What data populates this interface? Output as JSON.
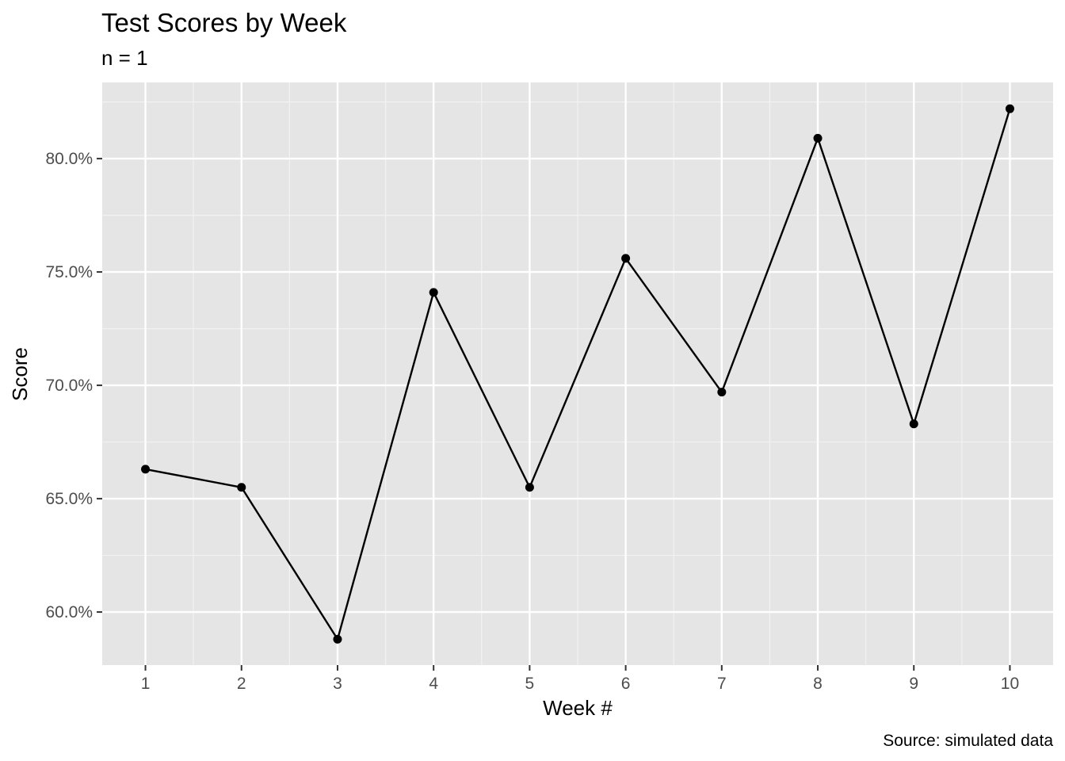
{
  "chart_data": {
    "type": "line",
    "title": "Test Scores by Week",
    "subtitle": "n = 1",
    "xlabel": "Week #",
    "ylabel": "Score",
    "caption": "Source: simulated data",
    "x": [
      1,
      2,
      3,
      4,
      5,
      6,
      7,
      8,
      9,
      10
    ],
    "x_tick_labels": [
      "1",
      "2",
      "3",
      "4",
      "5",
      "6",
      "7",
      "8",
      "9",
      "10"
    ],
    "values": [
      0.663,
      0.655,
      0.588,
      0.741,
      0.655,
      0.756,
      0.697,
      0.809,
      0.683,
      0.822
    ],
    "y_ticks": [
      0.6,
      0.65,
      0.7,
      0.75,
      0.8
    ],
    "y_tick_labels": [
      "60.0%",
      "65.0%",
      "70.0%",
      "75.0%",
      "80.0%"
    ],
    "xlim": [
      0.55,
      10.45
    ],
    "ylim": [
      0.5766,
      0.8336
    ],
    "grid": true,
    "colors": {
      "panel_background": "#e5e5e5",
      "grid_major": "#ffffff",
      "grid_minor": "#f2f2f2",
      "line": "#000000",
      "points": "#000000",
      "tick_text": "#4d4d4d"
    }
  }
}
